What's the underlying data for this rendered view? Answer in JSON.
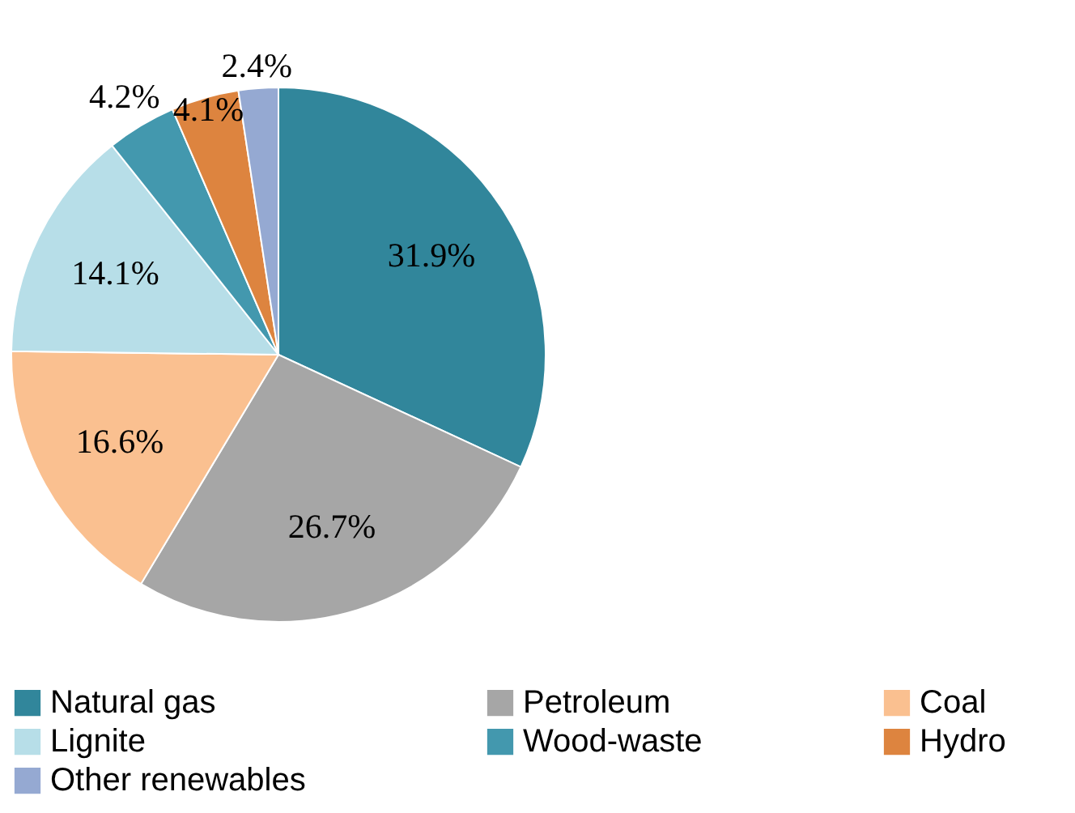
{
  "chart_data": {
    "type": "pie",
    "categories": [
      "Natural gas",
      "Petroleum",
      "Coal",
      "Lignite",
      "Wood-waste",
      "Hydro",
      "Other renewables"
    ],
    "values": [
      31.9,
      26.7,
      16.6,
      14.1,
      4.2,
      4.1,
      2.4
    ],
    "colors": [
      "#31869b",
      "#a6a6a6",
      "#fac090",
      "#b7dee8",
      "#4398ae",
      "#dd843f",
      "#95a9d2"
    ],
    "value_labels": [
      "31.9%",
      "26.7%",
      "16.6%",
      "14.1%",
      "4.2%",
      "4.1%",
      "2.4%"
    ],
    "legend": "bottom"
  }
}
